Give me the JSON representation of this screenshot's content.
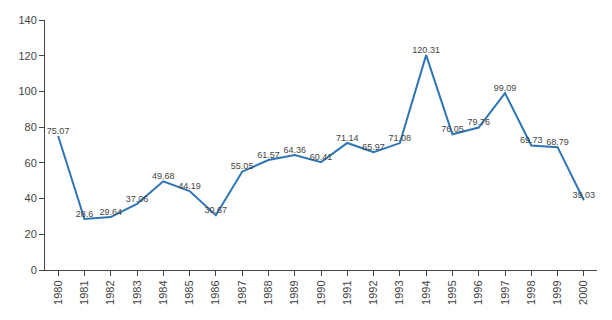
{
  "chart_data": {
    "type": "line",
    "x": [
      1980,
      1981,
      1982,
      1983,
      1984,
      1985,
      1986,
      1987,
      1988,
      1989,
      1990,
      1991,
      1992,
      1993,
      1994,
      1995,
      1996,
      1997,
      1998,
      1999,
      2000
    ],
    "values": [
      75.07,
      28.6,
      29.64,
      37.06,
      49.68,
      44.19,
      30.67,
      55.05,
      61.57,
      64.36,
      60.41,
      71.14,
      65.97,
      71.08,
      120.31,
      76.05,
      79.76,
      99.09,
      69.73,
      68.79,
      39.03
    ],
    "color": "#2E75B6",
    "xlim": [
      1979.5,
      2000.5
    ],
    "xticks": [
      1980,
      1981,
      1982,
      1983,
      1984,
      1985,
      1986,
      1987,
      1988,
      1989,
      1990,
      1991,
      1992,
      1993,
      1994,
      1995,
      1996,
      1997,
      1998,
      1999,
      2000
    ],
    "ylim": [
      0,
      140
    ],
    "yticks": [
      0,
      20,
      40,
      60,
      80,
      100,
      120,
      140
    ],
    "data_labels": true,
    "grid": false
  }
}
